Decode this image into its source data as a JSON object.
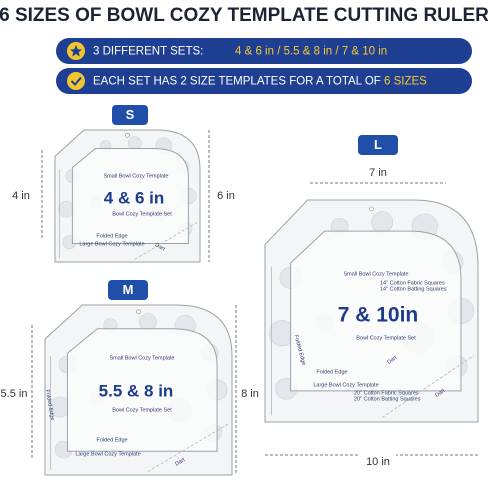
{
  "header": {
    "title": "6 SIZES OF BOWL COZY TEMPLATE CUTTING RULER"
  },
  "banners": [
    {
      "text": "3 DIFFERENT SETS:",
      "highlight": "4 & 6 in / 5.5 & 8 in / 7 & 10 in"
    },
    {
      "text": "EACH SET HAS 2 SIZE TEMPLATES FOR A TOTAL OF",
      "highlight": "6 SIZES"
    }
  ],
  "sets": [
    {
      "badge": "S",
      "inner_dim": "4 in",
      "outer_dim": "6 in",
      "size": "4 & 6 in",
      "small_label": "Small Bowl Cozy Template",
      "set_label": "Bowl Cozy Template Set",
      "large_label": "Large Bowl Cozy Template",
      "fold": "Folded Edge",
      "dart": "Dart"
    },
    {
      "badge": "M",
      "inner_dim": "5.5 in",
      "outer_dim": "8 in",
      "size": "5.5 & 8 in",
      "small_label": "Small Bowl Cozy Template",
      "set_label": "Bowl Cozy Template Set",
      "large_label": "Large Bowl Cozy Template",
      "fold": "Folded Edge",
      "dart": "Dart"
    },
    {
      "badge": "L",
      "inner_dim": "7 in",
      "outer_dim": "10 in",
      "size": "7 & 10in",
      "small_label": "Small Bowl Cozy Template",
      "small_materials": [
        "14\" Cotton Fabric Squares",
        "14\" Cotton Batting Squares"
      ],
      "set_label": "Bowl Cozy Template Set",
      "large_label": "Large Bowl Cozy Template",
      "large_materials": [
        "20\" Cotton Fabric Squares",
        "20\" Cotton Batting Squares"
      ],
      "fold": "Folded Edge",
      "dart": "Dart"
    }
  ]
}
